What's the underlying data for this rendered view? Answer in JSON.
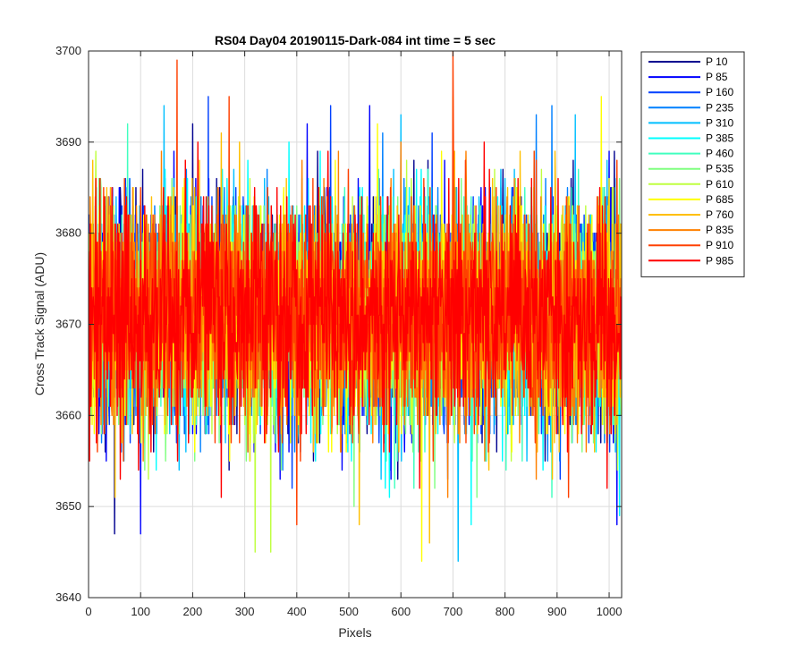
{
  "chart_data": {
    "type": "line",
    "title": "RS04 Day04 20190115-Dark-084 int time = 5 sec",
    "xlabel": "Pixels",
    "ylabel": "Cross Track Signal (ADU)",
    "xlim": [
      0,
      1024
    ],
    "ylim": [
      3640,
      3700
    ],
    "xticks": [
      0,
      100,
      200,
      300,
      400,
      500,
      600,
      700,
      800,
      900,
      1000
    ],
    "yticks": [
      3640,
      3650,
      3660,
      3670,
      3680,
      3690,
      3700
    ],
    "grid": true,
    "legend_position": "outside-top-right",
    "x_points": 1024,
    "signal_mean": 3671,
    "signal_std": 6,
    "series": [
      {
        "name": "P 10",
        "color": "#00008F",
        "seed": 11,
        "peaks": [
          [
            50,
            3647
          ],
          [
            200,
            3692
          ],
          [
            440,
            3689
          ]
        ]
      },
      {
        "name": "P 85",
        "color": "#0000FF",
        "seed": 23,
        "peaks": [
          [
            100,
            3647
          ],
          [
            420,
            3692
          ],
          [
            540,
            3694
          ],
          [
            1015,
            3648
          ]
        ]
      },
      {
        "name": "P 160",
        "color": "#0040FF",
        "seed": 37,
        "peaks": [
          [
            230,
            3695
          ],
          [
            465,
            3694
          ],
          [
            660,
            3691
          ]
        ]
      },
      {
        "name": "P 235",
        "color": "#0080FF",
        "seed": 41,
        "peaks": [
          [
            565,
            3691
          ],
          [
            860,
            3693
          ],
          [
            890,
            3694
          ]
        ]
      },
      {
        "name": "P 310",
        "color": "#00BFFF",
        "seed": 53,
        "peaks": [
          [
            145,
            3694
          ],
          [
            600,
            3693
          ],
          [
            710,
            3644
          ],
          [
            935,
            3693
          ]
        ]
      },
      {
        "name": "P 385",
        "color": "#00FFFF",
        "seed": 67,
        "peaks": [
          [
            385,
            3690
          ],
          [
            735,
            3648
          ],
          [
            1020,
            3649
          ]
        ]
      },
      {
        "name": "P 460",
        "color": "#40FFBF",
        "seed": 71,
        "peaks": [
          [
            75,
            3692
          ],
          [
            625,
            3652
          ],
          [
            890,
            3651
          ]
        ]
      },
      {
        "name": "P 535",
        "color": "#80FF80",
        "seed": 83,
        "peaks": [
          [
            160,
            3686
          ],
          [
            510,
            3650
          ],
          [
            820,
            3686
          ]
        ]
      },
      {
        "name": "P 610",
        "color": "#BFFF40",
        "seed": 97,
        "peaks": [
          [
            320,
            3645
          ],
          [
            350,
            3645
          ],
          [
            780,
            3687
          ]
        ]
      },
      {
        "name": "P 685",
        "color": "#FFFF00",
        "seed": 101,
        "peaks": [
          [
            555,
            3692
          ],
          [
            640,
            3644
          ],
          [
            700,
            3695
          ],
          [
            985,
            3695
          ]
        ]
      },
      {
        "name": "P 760",
        "color": "#FFBF00",
        "seed": 113,
        "peaks": [
          [
            255,
            3691
          ],
          [
            290,
            3690
          ],
          [
            520,
            3648
          ],
          [
            655,
            3646
          ]
        ]
      },
      {
        "name": "P 835",
        "color": "#FF8000",
        "seed": 127,
        "peaks": [
          [
            140,
            3689
          ],
          [
            410,
            3688
          ],
          [
            600,
            3690
          ]
        ]
      },
      {
        "name": "P 910",
        "color": "#FF4000",
        "seed": 131,
        "peaks": [
          [
            170,
            3699
          ],
          [
            400,
            3648
          ],
          [
            700,
            3700
          ],
          [
            270,
            3695
          ]
        ]
      },
      {
        "name": "P 985",
        "color": "#FF0000",
        "seed": 139,
        "peaks": [
          [
            210,
            3690
          ],
          [
            460,
            3689
          ],
          [
            760,
            3690
          ]
        ]
      }
    ]
  }
}
